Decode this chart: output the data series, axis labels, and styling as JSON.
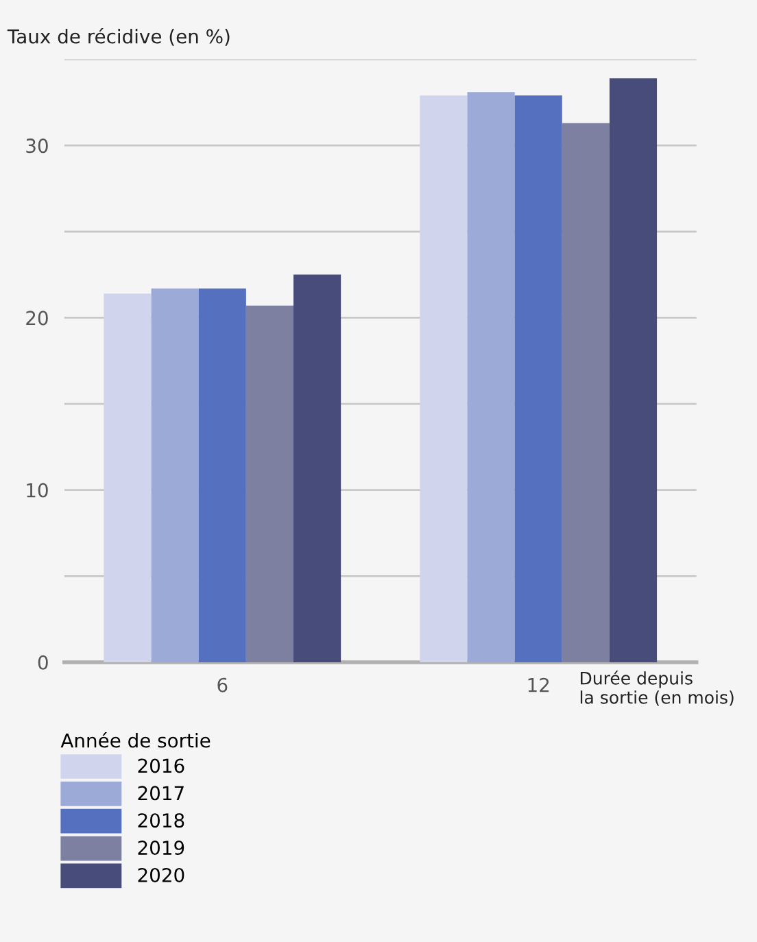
{
  "chart_data": {
    "type": "bar",
    "ylabel": "Taux de récidive (en %)",
    "xlabel": "Durée depuis\nla sortie (en mois)",
    "legend_title": "Année de sortie",
    "categories": [
      "6",
      "12"
    ],
    "series": [
      {
        "name": "2016",
        "color": "#d0d5ed",
        "values": [
          21.4,
          32.9
        ]
      },
      {
        "name": "2017",
        "color": "#9caad8",
        "values": [
          21.7,
          33.1
        ]
      },
      {
        "name": "2018",
        "color": "#5470be",
        "values": [
          21.7,
          32.9
        ]
      },
      {
        "name": "2019",
        "color": "#7d80a0",
        "values": [
          20.7,
          31.3
        ]
      },
      {
        "name": "2020",
        "color": "#474c7a",
        "values": [
          22.5,
          33.9
        ]
      }
    ],
    "ylim": [
      0,
      35
    ],
    "yticks": [
      0,
      {
        "value": 5,
        "label": null
      },
      10,
      {
        "value": 15,
        "label": null
      },
      20,
      {
        "value": 25,
        "label": null
      },
      30,
      {
        "value": 35,
        "label": null
      }
    ],
    "grid": "y",
    "legend": "bottom left"
  }
}
